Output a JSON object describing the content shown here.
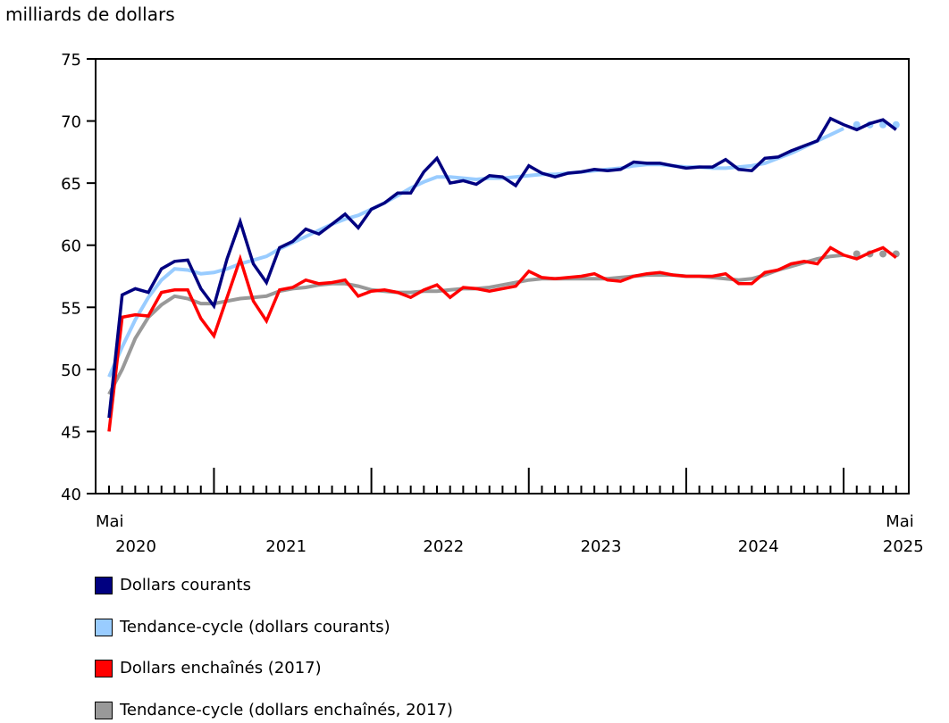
{
  "chart_data": {
    "type": "line",
    "ylabel": "milliards de dollars",
    "ylim": [
      40,
      75
    ],
    "yticks": [
      40,
      45,
      50,
      55,
      60,
      65,
      70,
      75
    ],
    "x_start": "Mai 2020",
    "x_end": "Mai 2025",
    "x_start_month_label": "Mai",
    "x_end_month_label": "Mai",
    "year_labels": [
      "2020",
      "2021",
      "2022",
      "2023",
      "2024",
      "2025"
    ],
    "grid": false,
    "legend_position": "bottom",
    "series": [
      {
        "name": "Dollars courants",
        "color": "#000080",
        "style": "line",
        "values": [
          46.1,
          56.0,
          56.5,
          56.2,
          58.1,
          58.7,
          58.8,
          56.5,
          55.1,
          58.9,
          61.9,
          58.5,
          57.0,
          59.8,
          60.3,
          61.3,
          60.9,
          61.7,
          62.5,
          61.4,
          62.9,
          63.4,
          64.2,
          64.2,
          65.9,
          67.0,
          65.0,
          65.2,
          64.9,
          65.6,
          65.5,
          64.8,
          66.4,
          65.8,
          65.5,
          65.8,
          65.9,
          66.1,
          66.0,
          66.1,
          66.7,
          66.6,
          66.6,
          66.4,
          66.2,
          66.3,
          66.3,
          66.9,
          66.1,
          66.0,
          67.0,
          67.1,
          67.6,
          68.0,
          68.4,
          70.2,
          69.7,
          69.3,
          69.8,
          70.1,
          69.3
        ]
      },
      {
        "name": "Tendance-cycle (dollars courants)",
        "color": "#99CCFF",
        "style": "trend",
        "last_solid_index": 56,
        "values": [
          49.4,
          51.8,
          54.0,
          55.8,
          57.2,
          58.1,
          58.0,
          57.7,
          57.8,
          58.1,
          58.5,
          58.8,
          59.1,
          59.7,
          60.2,
          60.7,
          61.2,
          61.7,
          62.1,
          62.4,
          62.9,
          63.4,
          64.0,
          64.6,
          65.1,
          65.5,
          65.5,
          65.4,
          65.3,
          65.4,
          65.4,
          65.5,
          65.6,
          65.7,
          65.7,
          65.8,
          65.9,
          66.0,
          66.1,
          66.2,
          66.4,
          66.5,
          66.5,
          66.4,
          66.3,
          66.3,
          66.2,
          66.2,
          66.3,
          66.4,
          66.6,
          67.0,
          67.4,
          67.9,
          68.4,
          68.9,
          69.4,
          69.7,
          69.7,
          69.7,
          69.7
        ]
      },
      {
        "name": "Dollars enchaînés (2017)",
        "color": "#FF0000",
        "style": "line",
        "values": [
          45.0,
          54.2,
          54.4,
          54.3,
          56.2,
          56.4,
          56.4,
          54.1,
          52.7,
          55.8,
          58.9,
          55.5,
          53.9,
          56.4,
          56.6,
          57.2,
          56.9,
          57.0,
          57.2,
          55.9,
          56.3,
          56.4,
          56.2,
          55.8,
          56.4,
          56.8,
          55.8,
          56.6,
          56.5,
          56.3,
          56.5,
          56.7,
          57.9,
          57.4,
          57.3,
          57.4,
          57.5,
          57.7,
          57.2,
          57.1,
          57.5,
          57.7,
          57.8,
          57.6,
          57.5,
          57.5,
          57.5,
          57.7,
          56.9,
          56.9,
          57.8,
          58.0,
          58.5,
          58.7,
          58.5,
          59.8,
          59.2,
          58.9,
          59.4,
          59.8,
          59.0
        ]
      },
      {
        "name": "Tendance-cycle (dollars enchaînés, 2017)",
        "color": "#999999",
        "style": "trend",
        "last_solid_index": 56,
        "values": [
          48.0,
          50.0,
          52.5,
          54.2,
          55.2,
          55.9,
          55.7,
          55.3,
          55.3,
          55.5,
          55.7,
          55.8,
          55.9,
          56.3,
          56.5,
          56.6,
          56.8,
          56.9,
          56.9,
          56.7,
          56.4,
          56.3,
          56.2,
          56.2,
          56.3,
          56.3,
          56.4,
          56.5,
          56.5,
          56.6,
          56.8,
          57.0,
          57.2,
          57.3,
          57.3,
          57.3,
          57.3,
          57.3,
          57.3,
          57.4,
          57.5,
          57.6,
          57.6,
          57.6,
          57.5,
          57.5,
          57.4,
          57.3,
          57.2,
          57.3,
          57.6,
          58.0,
          58.3,
          58.6,
          58.9,
          59.1,
          59.2,
          59.3,
          59.3,
          59.3,
          59.3
        ]
      }
    ]
  }
}
